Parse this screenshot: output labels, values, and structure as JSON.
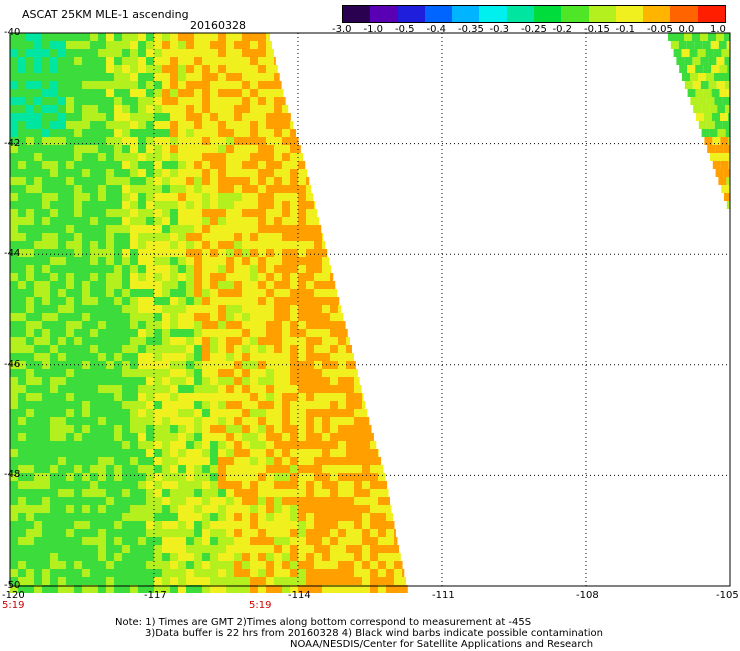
{
  "header": {
    "title": "ASCAT 25KM MLE-1 ascending",
    "date": "20160328"
  },
  "colorbar": {
    "labels": [
      "-3.0",
      "-1.0",
      "-0.5",
      "-0.4",
      "-0.35",
      "-0.3",
      "-0.25",
      "-0.2",
      "-0.15",
      "-0.1",
      "-0.05",
      "0.0",
      "1.0"
    ],
    "colors": [
      "#2a0050",
      "#5a00b4",
      "#1e1edc",
      "#0064ff",
      "#00b4ff",
      "#00f0f0",
      "#00e6a0",
      "#00dc3c",
      "#50e628",
      "#b4f01e",
      "#f0f01e",
      "#ffb400",
      "#ff6400",
      "#ff1e00"
    ]
  },
  "map": {
    "lon_labels": [
      "-120",
      "-117",
      "-114",
      "-111",
      "-108",
      "-105"
    ],
    "lat_labels": [
      "-40",
      "-42",
      "-44",
      "-46",
      "-48",
      "-50"
    ],
    "time_labels": [
      "5:19",
      "5:19"
    ],
    "lon_range": [
      -120,
      -105
    ],
    "lat_range": [
      -50,
      -40
    ],
    "palette": {
      "green": "#3cdc3c",
      "yellow_green": "#b4f01e",
      "yellow": "#f0f01e",
      "orange": "#ffa000",
      "cyan": "#00e6a0"
    }
  },
  "notes": {
    "line1": "Note: 1) Times are GMT 2)Times along bottom correspond to measurement at -45S",
    "line2": "3)Data buffer is 22 hrs from 20160328 4) Black wind barbs indicate possible contamination",
    "line3": "NOAA/NESDIS/Center for Satellite Applications and Research"
  }
}
